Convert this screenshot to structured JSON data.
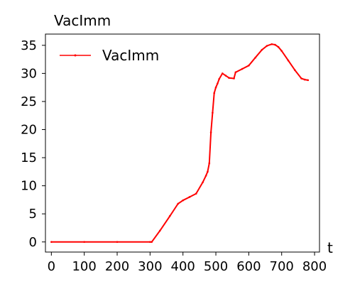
{
  "chart_data": {
    "type": "line",
    "title": "VacImm",
    "xlabel": "t",
    "ylabel": "",
    "xlim": [
      -18,
      815
    ],
    "ylim": [
      -1.8,
      37
    ],
    "x_ticks": [
      0,
      100,
      200,
      300,
      400,
      500,
      600,
      700,
      800
    ],
    "y_ticks": [
      0,
      5,
      10,
      15,
      20,
      25,
      30,
      35
    ],
    "grid": false,
    "legend_position": "top-left",
    "series": [
      {
        "name": "VacImm",
        "color": "#ff0000",
        "x": [
          0,
          100,
          200,
          300,
          305,
          330,
          360,
          385,
          400,
          420,
          440,
          460,
          470,
          475,
          480,
          485,
          490,
          495,
          500,
          505,
          510,
          520,
          530,
          540,
          555,
          560,
          580,
          600,
          620,
          640,
          655,
          670,
          680,
          690,
          700,
          720,
          740,
          760,
          770,
          780
        ],
        "y": [
          0,
          0,
          0,
          0,
          0,
          2.0,
          4.6,
          6.8,
          7.4,
          8.0,
          8.6,
          10.6,
          11.8,
          12.5,
          14.0,
          19.5,
          23.0,
          26.5,
          27.5,
          28.2,
          29.0,
          30.0,
          29.6,
          29.2,
          29.1,
          30.2,
          30.8,
          31.4,
          32.8,
          34.2,
          34.9,
          35.2,
          35.1,
          34.7,
          34.0,
          32.3,
          30.6,
          29.1,
          28.9,
          28.8
        ]
      }
    ]
  }
}
